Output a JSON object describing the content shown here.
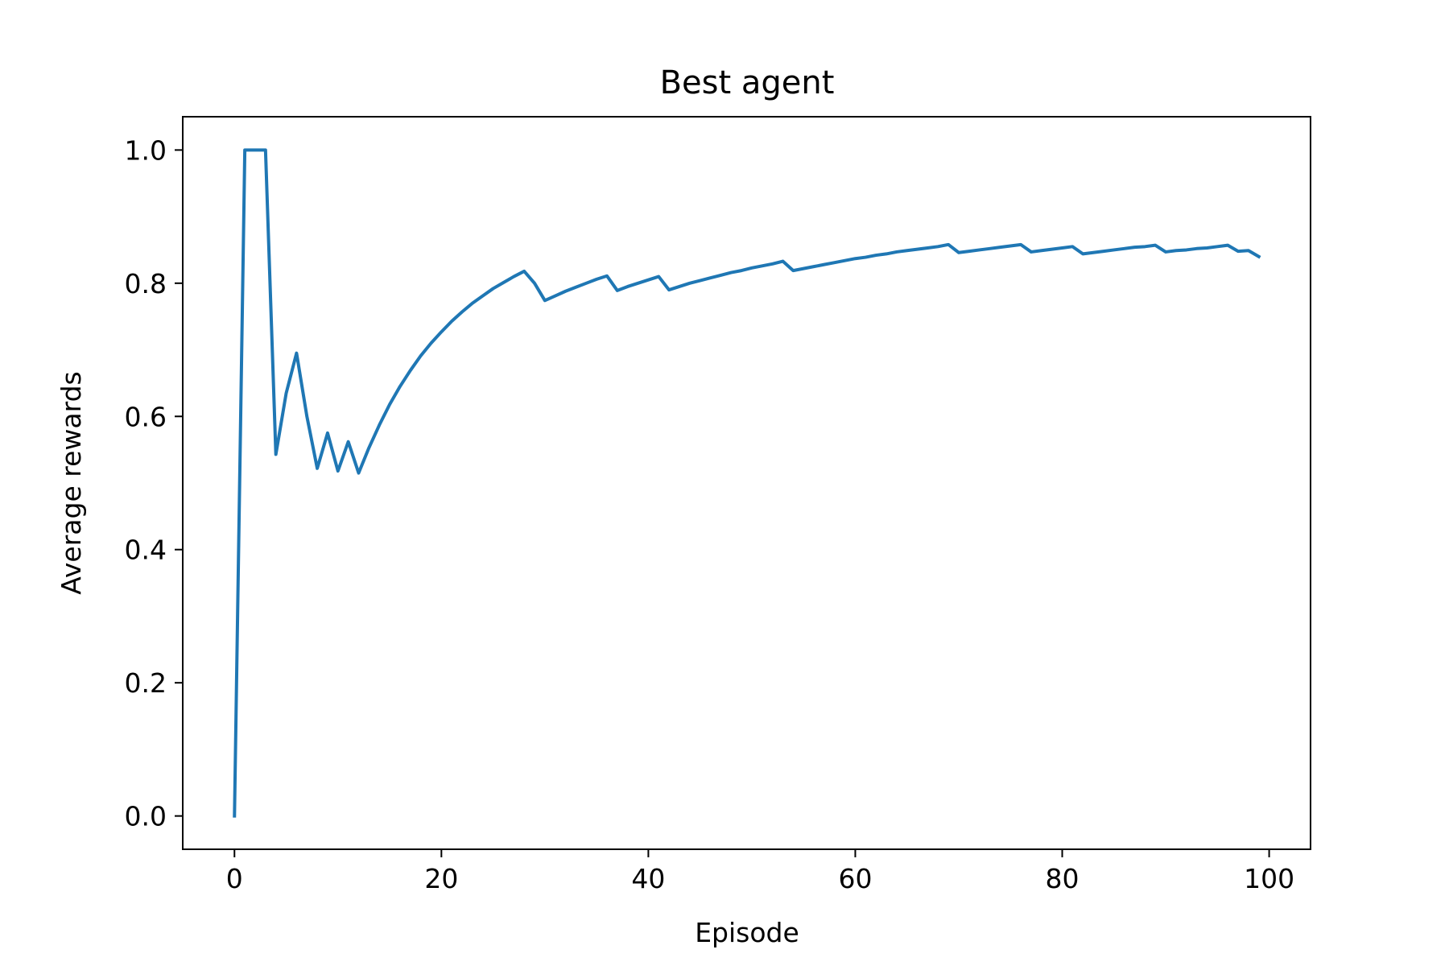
{
  "chart_data": {
    "type": "line",
    "title": "Best agent",
    "xlabel": "Episode",
    "ylabel": "Average rewards",
    "xlim": [
      -5,
      104
    ],
    "ylim": [
      -0.05,
      1.05
    ],
    "x_ticks": [
      0,
      20,
      40,
      60,
      80,
      100
    ],
    "x_tick_labels": [
      "0",
      "20",
      "40",
      "60",
      "80",
      "100"
    ],
    "y_ticks": [
      0.0,
      0.2,
      0.4,
      0.6,
      0.8,
      1.0
    ],
    "y_tick_labels": [
      "0.0",
      "0.2",
      "0.4",
      "0.6",
      "0.8",
      "1.0"
    ],
    "grid": false,
    "series": [
      {
        "color": "#1f77b4",
        "x": [
          0,
          1,
          2,
          3,
          4,
          5,
          6,
          7,
          8,
          9,
          10,
          11,
          12,
          13,
          14,
          15,
          16,
          17,
          18,
          19,
          20,
          21,
          22,
          23,
          24,
          25,
          26,
          27,
          28,
          29,
          30,
          31,
          32,
          33,
          34,
          35,
          36,
          37,
          38,
          39,
          40,
          41,
          42,
          43,
          44,
          45,
          46,
          47,
          48,
          49,
          50,
          51,
          52,
          53,
          54,
          55,
          56,
          57,
          58,
          59,
          60,
          61,
          62,
          63,
          64,
          65,
          66,
          67,
          68,
          69,
          70,
          71,
          72,
          73,
          74,
          75,
          76,
          77,
          78,
          79,
          80,
          81,
          82,
          83,
          84,
          85,
          86,
          87,
          88,
          89,
          90,
          91,
          92,
          93,
          94,
          95,
          96,
          97,
          98,
          99
        ],
        "y": [
          0.0,
          1.0,
          1.0,
          1.0,
          0.543,
          0.635,
          0.695,
          0.6,
          0.522,
          0.575,
          0.518,
          0.562,
          0.515,
          0.553,
          0.587,
          0.618,
          0.645,
          0.669,
          0.691,
          0.71,
          0.727,
          0.743,
          0.757,
          0.77,
          0.781,
          0.792,
          0.801,
          0.81,
          0.818,
          0.8,
          0.774,
          0.781,
          0.788,
          0.794,
          0.8,
          0.806,
          0.811,
          0.789,
          0.795,
          0.8,
          0.805,
          0.81,
          0.79,
          0.795,
          0.8,
          0.804,
          0.808,
          0.812,
          0.816,
          0.819,
          0.823,
          0.826,
          0.829,
          0.833,
          0.819,
          0.822,
          0.825,
          0.828,
          0.831,
          0.834,
          0.837,
          0.839,
          0.842,
          0.844,
          0.847,
          0.849,
          0.851,
          0.853,
          0.855,
          0.858,
          0.846,
          0.848,
          0.85,
          0.852,
          0.854,
          0.856,
          0.858,
          0.847,
          0.849,
          0.851,
          0.853,
          0.855,
          0.844,
          0.846,
          0.848,
          0.85,
          0.852,
          0.854,
          0.855,
          0.857,
          0.847,
          0.849,
          0.85,
          0.852,
          0.853,
          0.855,
          0.857,
          0.848,
          0.849,
          0.84
        ]
      }
    ]
  }
}
